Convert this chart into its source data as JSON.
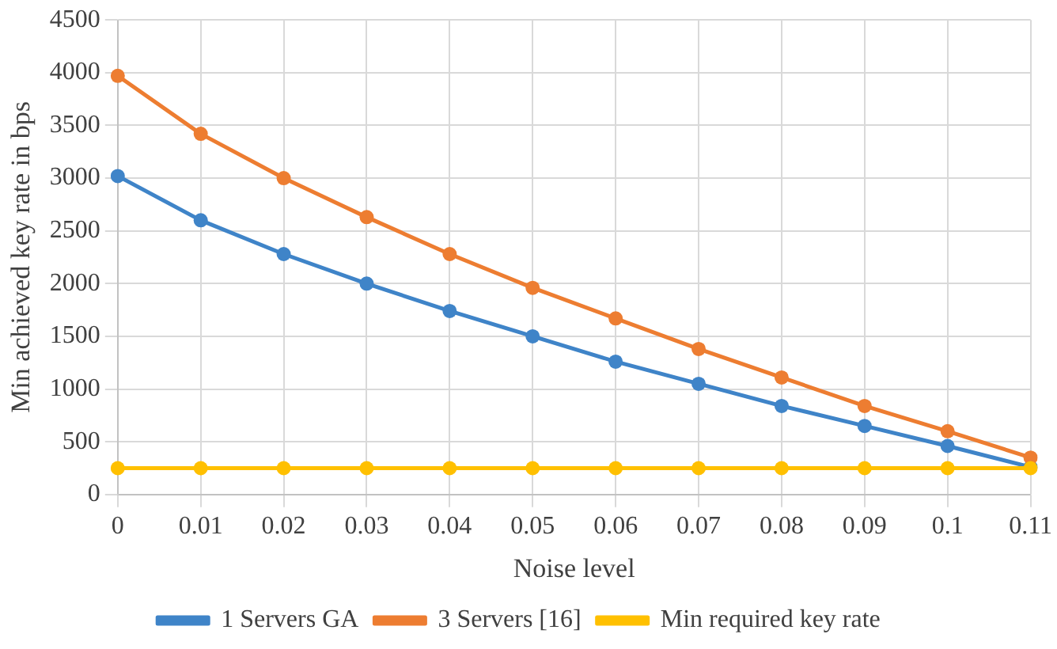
{
  "chart_data": {
    "type": "line",
    "xlabel": "Noise level",
    "ylabel": "Min achieved key rate in bps",
    "categories": [
      "0",
      "0.01",
      "0.02",
      "0.03",
      "0.04",
      "0.05",
      "0.06",
      "0.07",
      "0.08",
      "0.09",
      "0.1",
      "0.11"
    ],
    "series": [
      {
        "name": "1 Servers GA",
        "color": "#3f84c8",
        "values": [
          3020,
          2600,
          2280,
          2000,
          1740,
          1500,
          1260,
          1050,
          840,
          650,
          460,
          260
        ]
      },
      {
        "name": "3 Servers [16]",
        "color": "#ed7d31",
        "values": [
          3970,
          3420,
          3000,
          2630,
          2280,
          1960,
          1670,
          1380,
          1110,
          840,
          600,
          350
        ]
      },
      {
        "name": "Min required key rate",
        "color": "#ffc000",
        "values": [
          250,
          250,
          250,
          250,
          250,
          250,
          250,
          250,
          250,
          250,
          250,
          250
        ]
      }
    ],
    "ylim": [
      0,
      4500
    ],
    "yticks": [
      0,
      500,
      1000,
      1500,
      2000,
      2500,
      3000,
      3500,
      4000,
      4500
    ],
    "grid": true,
    "legend": "bottom",
    "marker": "circle",
    "line_style": "solid"
  }
}
